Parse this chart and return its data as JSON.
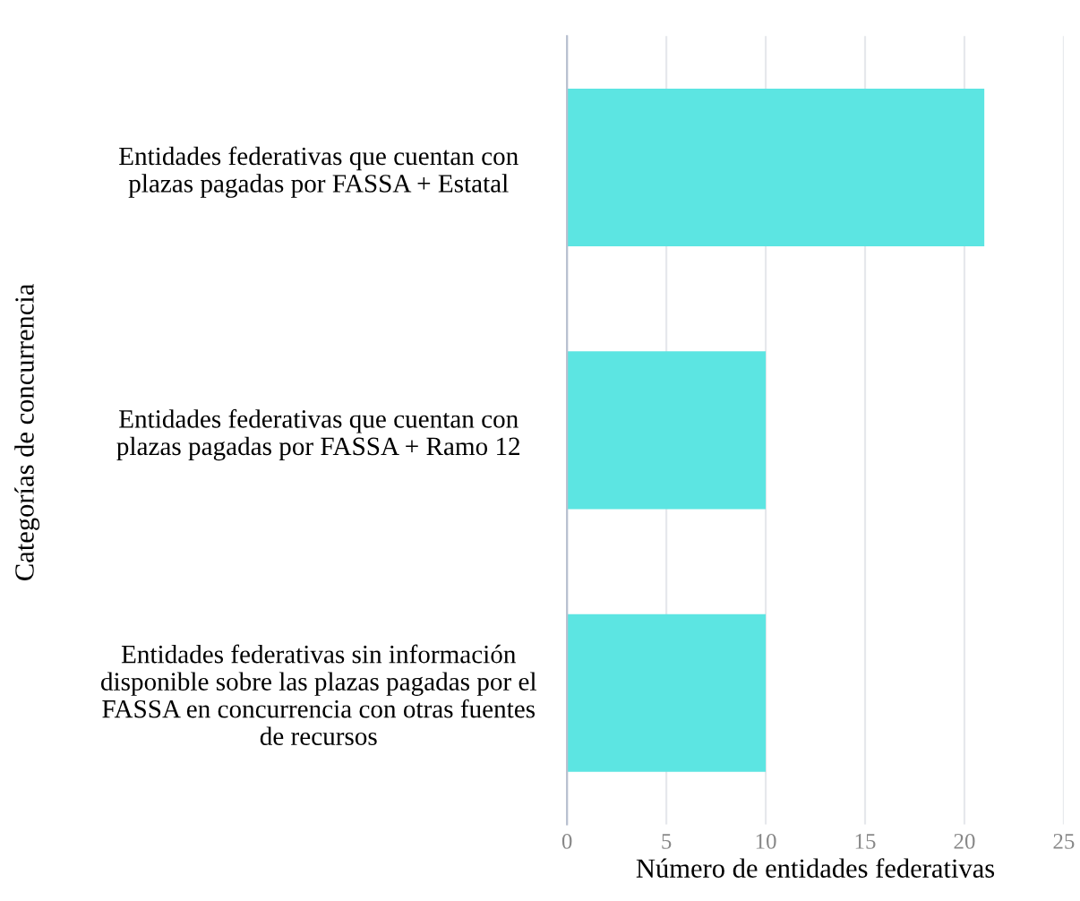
{
  "chart_data": {
    "type": "bar",
    "orientation": "horizontal",
    "categories": [
      "Entidades federativas que cuentan con\nplazas pagadas por FASSA + Estatal",
      "Entidades federativas que cuentan con\nplazas pagadas por FASSA + Ramo 12",
      "Entidades federativas sin información\ndisponible sobre las plazas pagadas por el\nFASSA en concurrencia con otras fuentes\nde recursos"
    ],
    "values": [
      21,
      10,
      10
    ],
    "color": "#5ce5e2",
    "xlim": [
      0,
      25
    ],
    "xticks": [
      0,
      5,
      10,
      15,
      20,
      25
    ],
    "grid": "x",
    "xlabel": "Número de entidades federativas",
    "ylabel": "Categorías de concurrencia"
  }
}
